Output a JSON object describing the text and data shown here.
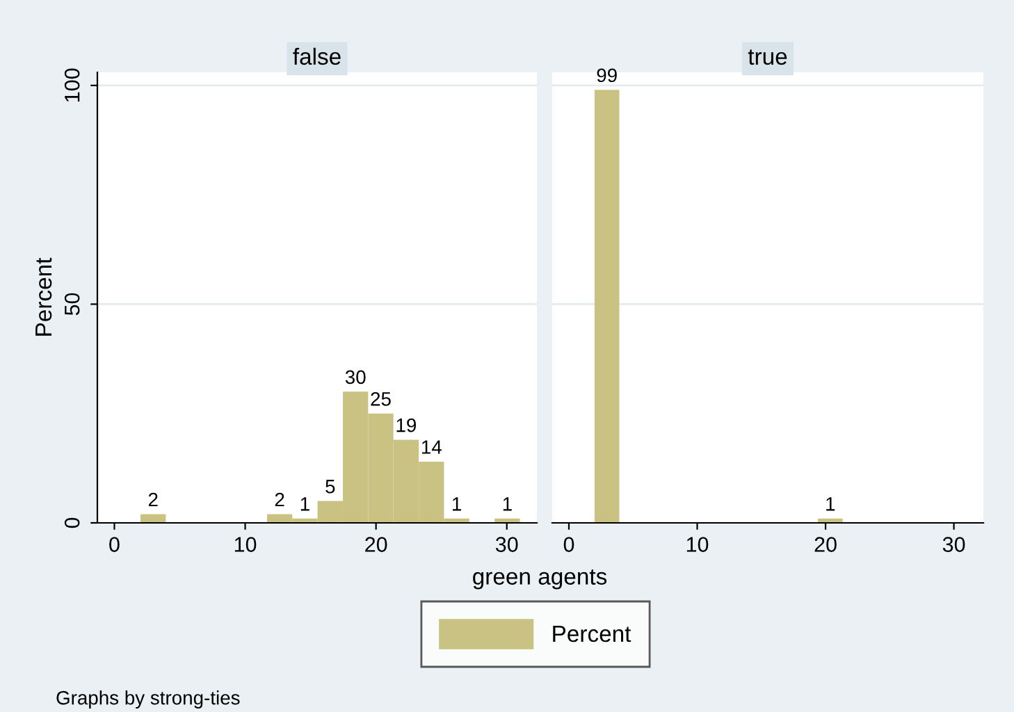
{
  "chart_data": [
    {
      "type": "histogram",
      "title": "false",
      "xlabel": "green agents",
      "ylabel": "Percent",
      "legend": "bottom",
      "grid": "y",
      "bins": [
        2,
        3.93,
        5.87,
        7.8,
        9.73,
        11.67,
        13.6,
        15.53,
        17.47,
        19.4,
        21.33,
        23.27,
        25.2,
        27.13,
        29.07,
        31
      ],
      "series": [
        {
          "name": "Percent",
          "color": "#c9c282",
          "values": [
            2,
            0,
            0,
            0,
            0,
            2,
            1,
            5,
            30,
            25,
            19,
            14,
            1,
            0,
            1
          ],
          "value_labels": [
            "2",
            null,
            null,
            null,
            null,
            "2",
            "1",
            "5",
            "30",
            "25",
            "19",
            "14",
            "1",
            null,
            "1"
          ]
        }
      ],
      "xlim": [
        -1.3,
        32.3
      ],
      "xticks": [
        0,
        10,
        20,
        30
      ],
      "ylim": [
        0,
        103
      ],
      "yticks": [
        0,
        50,
        100
      ],
      "annotations": [
        "Graphs by strong-ties"
      ]
    },
    {
      "type": "histogram",
      "title": "true",
      "grid": "y",
      "tick_labels": "x",
      "bins": [
        2,
        3.93,
        5.87,
        7.8,
        9.73,
        11.67,
        13.6,
        15.53,
        17.47,
        19.4,
        21.33,
        23.27,
        25.2,
        27.13,
        29.07,
        31
      ],
      "series": [
        {
          "color": "#c9c282",
          "values": [
            99,
            0,
            0,
            0,
            0,
            0,
            0,
            0,
            0,
            1,
            0,
            0,
            0,
            0,
            0
          ],
          "value_labels": [
            "99",
            null,
            null,
            null,
            null,
            null,
            null,
            null,
            null,
            "1",
            null,
            null,
            null,
            null,
            null
          ]
        }
      ],
      "xlim": [
        -1.3,
        32.3
      ],
      "xticks": [
        0,
        10,
        20,
        30
      ],
      "ylim": [
        0,
        103
      ],
      "yticks": [
        0,
        50,
        100
      ]
    }
  ]
}
